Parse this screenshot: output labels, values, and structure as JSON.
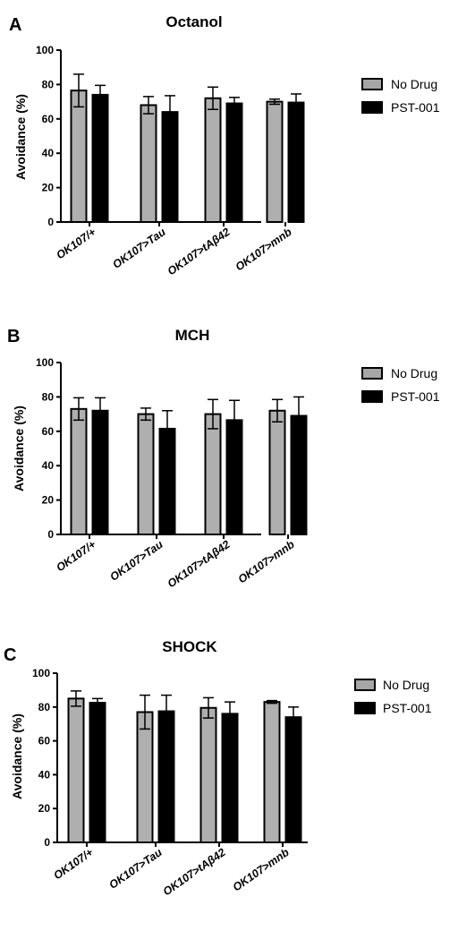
{
  "chart_data": [
    {
      "type": "bar",
      "panel": "A",
      "title": "Octanol",
      "xlabel": "",
      "ylabel": "Avoidance (%)",
      "ylim": [
        0,
        100
      ],
      "yticks": [
        0,
        20,
        40,
        60,
        80,
        100
      ],
      "categories": [
        "OK107/+",
        "OK107>Tau",
        "OK107>tAβ42",
        "OK107>mnb"
      ],
      "series": [
        {
          "name": "No Drug",
          "color": "#a6a6a6",
          "values": [
            76.5,
            68,
            72,
            70
          ],
          "error": [
            9.5,
            5,
            6.5,
            1.5
          ]
        },
        {
          "name": "PST-001",
          "color": "#000000",
          "values": [
            74,
            64,
            69,
            69.5
          ],
          "error": [
            5.5,
            9.5,
            3.5,
            5
          ]
        }
      ],
      "legend": "top-right",
      "grid": false
    },
    {
      "type": "bar",
      "panel": "B",
      "title": "MCH",
      "xlabel": "",
      "ylabel": "Avoidance (%)",
      "ylim": [
        0,
        100
      ],
      "yticks": [
        0,
        20,
        40,
        60,
        80,
        100
      ],
      "categories": [
        "OK107/+",
        "OK107>Tau",
        "OK107>tAβ42",
        "OK107>mnb"
      ],
      "series": [
        {
          "name": "No Drug",
          "color": "#a6a6a6",
          "values": [
            73,
            70,
            70,
            72
          ],
          "error": [
            6.5,
            3.5,
            8.5,
            6.5
          ]
        },
        {
          "name": "PST-001",
          "color": "#000000",
          "values": [
            72,
            61.5,
            66.5,
            69
          ],
          "error": [
            7.5,
            10.5,
            11.5,
            11
          ]
        }
      ],
      "legend": "top-right",
      "grid": false
    },
    {
      "type": "bar",
      "panel": "C",
      "title": "SHOCK",
      "xlabel": "",
      "ylabel": "Avoidance (%)",
      "ylim": [
        0,
        100
      ],
      "yticks": [
        0,
        20,
        40,
        60,
        80,
        100
      ],
      "categories": [
        "OK107/+",
        "OK107>Tau",
        "OK107>tAβ42",
        "OK107>mnb"
      ],
      "series": [
        {
          "name": "No Drug",
          "color": "#a6a6a6",
          "values": [
            85,
            77,
            79.5,
            83
          ],
          "error": [
            4.5,
            10,
            6,
            0.8
          ]
        },
        {
          "name": "PST-001",
          "color": "#000000",
          "values": [
            82.5,
            77.5,
            76,
            74
          ],
          "error": [
            2.5,
            9.5,
            7,
            6
          ]
        }
      ],
      "legend": "top-right",
      "grid": false
    }
  ]
}
